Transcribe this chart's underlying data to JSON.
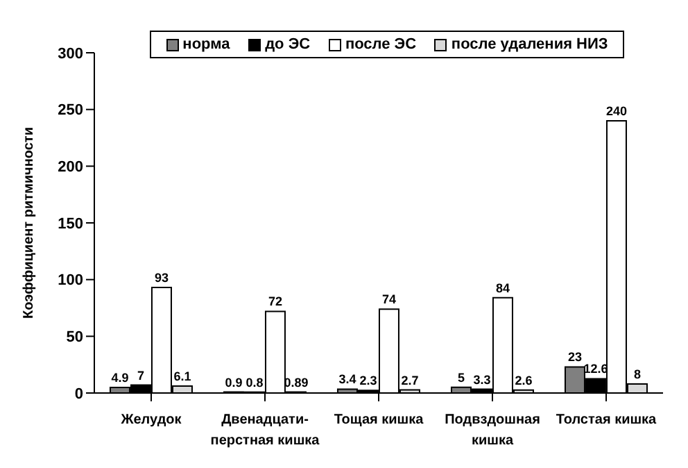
{
  "chart_data": {
    "type": "bar",
    "ylabel": "Коэффициент ритмичности",
    "categories": [
      "Желудок",
      "Двенадцати-перстная кишка",
      "Тощая кишка",
      "Подвздошная кишка",
      "Толстая кишка"
    ],
    "series": [
      {
        "name": "норма",
        "color": "#808080",
        "values": [
          4.9,
          0.9,
          3.4,
          5,
          23
        ]
      },
      {
        "name": "до ЭС",
        "color": "#000000",
        "values": [
          7,
          0.8,
          2.3,
          3.3,
          12.6
        ]
      },
      {
        "name": "после ЭС",
        "color": "#ffffff",
        "values": [
          93,
          72,
          74,
          84,
          240
        ]
      },
      {
        "name": "после удаления НИЗ",
        "color": "#d9d9d9",
        "values": [
          6.1,
          0.89,
          2.7,
          2.6,
          8
        ]
      }
    ],
    "ylim": [
      0,
      300
    ],
    "yticks": [
      0,
      50,
      100,
      150,
      200,
      250,
      300
    ],
    "grid": false,
    "legend": "top",
    "data_labels": true
  }
}
